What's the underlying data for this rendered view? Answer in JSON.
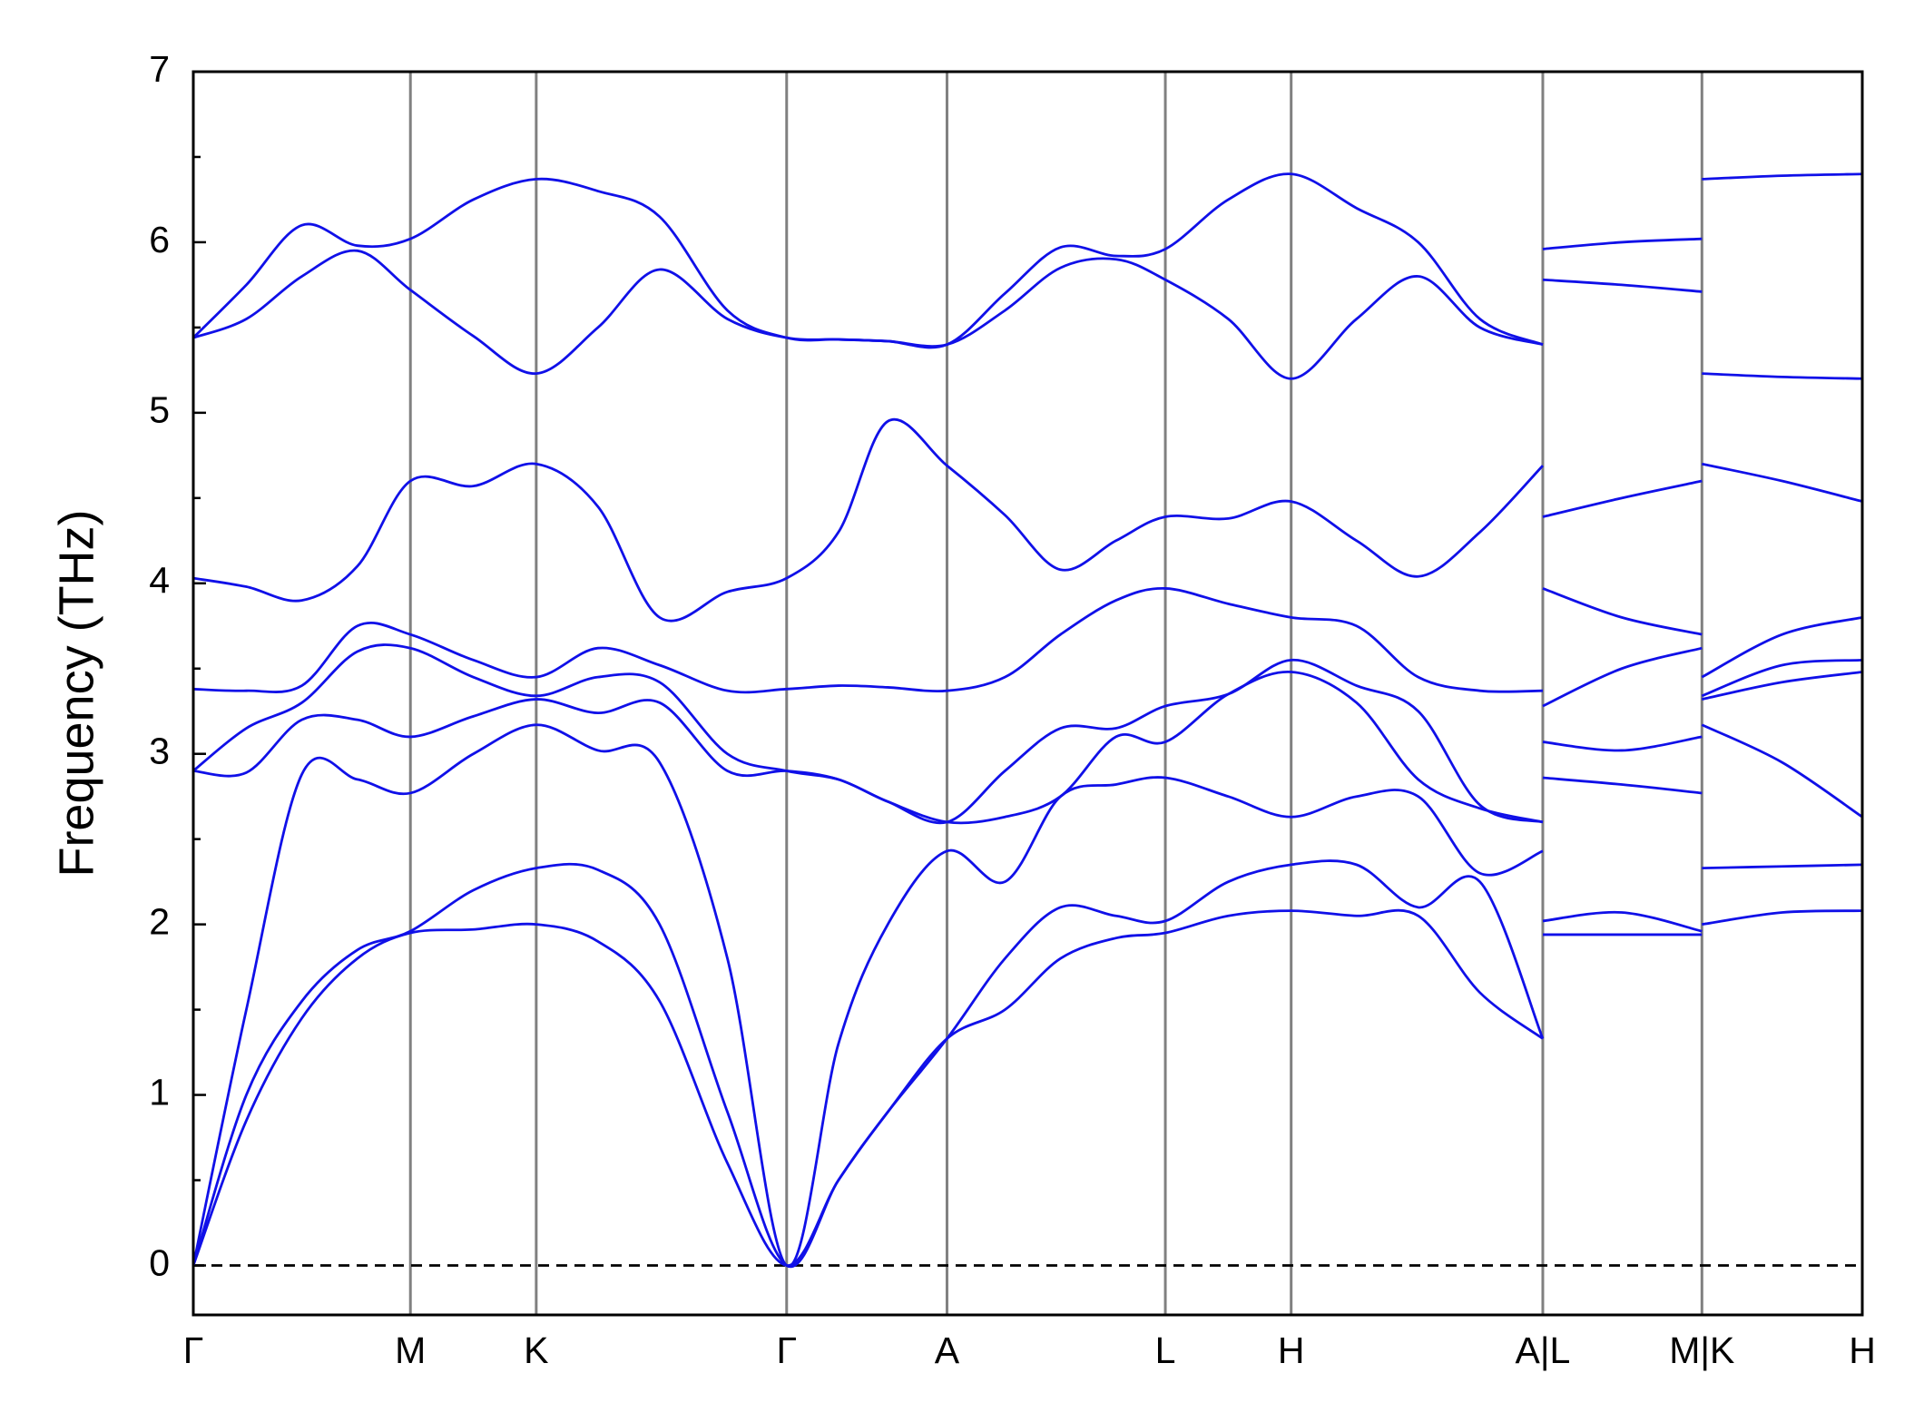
{
  "chart_data": {
    "type": "line",
    "y_label": "Frequency (THz)",
    "x": [
      0,
      0.43,
      0.88,
      1.33,
      1.76,
      2.27,
      2.78,
      3.28,
      3.78,
      4.33,
      4.81,
      5.23,
      5.63,
      6.11,
      6.58,
      7.03,
      7.48,
      7.88,
      8.39,
      8.9,
      9.43,
      9.93,
      10.43,
      10.94,
      null,
      10.94,
      11.58,
      12.23,
      null,
      12.23,
      12.88,
      13.53
    ],
    "xlim": [
      0,
      13.53
    ],
    "xticks": [
      {
        "value": 0,
        "label": "Γ"
      },
      {
        "value": 1.76,
        "label": "M"
      },
      {
        "value": 2.78,
        "label": "K"
      },
      {
        "value": 4.81,
        "label": "Γ"
      },
      {
        "value": 6.11,
        "label": "A"
      },
      {
        "value": 7.88,
        "label": "L"
      },
      {
        "value": 8.9,
        "label": "H"
      },
      {
        "value": 10.94,
        "label": "A|L"
      },
      {
        "value": 12.23,
        "label": "M|K"
      },
      {
        "value": 13.53,
        "label": "H"
      }
    ],
    "ylim": [
      -0.29,
      7
    ],
    "yticks": [
      0,
      1,
      2,
      3,
      4,
      5,
      6,
      7
    ],
    "yminorticks": [
      0.5,
      1.5,
      2.5,
      3.5,
      4.5,
      5.5,
      6.5
    ],
    "reference_line": 0,
    "grid": true,
    "series": [
      {
        "color": "#1010e8",
        "values": [
          0,
          0.85,
          1.45,
          1.8,
          1.95,
          1.97,
          2.0,
          1.9,
          1.55,
          0.6,
          0,
          0.5,
          0.9,
          1.33,
          1.5,
          1.8,
          1.92,
          1.95,
          2.05,
          2.08,
          2.05,
          2.05,
          1.6,
          1.33,
          null,
          1.94,
          1.94,
          1.94,
          null,
          2.0,
          2.07,
          2.08
        ]
      },
      {
        "color": "#1010e8",
        "values": [
          0,
          1.0,
          1.55,
          1.85,
          1.96,
          2.2,
          2.33,
          2.32,
          2.0,
          0.9,
          0,
          0.5,
          0.9,
          1.33,
          1.8,
          2.1,
          2.05,
          2.02,
          2.25,
          2.35,
          2.35,
          2.1,
          2.25,
          1.33,
          null,
          2.02,
          2.07,
          1.96,
          null,
          2.33,
          2.34,
          2.35
        ]
      },
      {
        "color": "#1010e8",
        "values": [
          0,
          1.5,
          2.88,
          2.85,
          2.77,
          3.0,
          3.17,
          3.02,
          2.95,
          1.8,
          0,
          1.3,
          2.0,
          2.43,
          2.25,
          2.75,
          2.82,
          2.86,
          2.75,
          2.63,
          2.75,
          2.75,
          2.3,
          2.43,
          null,
          2.86,
          2.82,
          2.77,
          null,
          3.17,
          2.95,
          2.63
        ]
      },
      {
        "color": "#1010e8",
        "values": [
          2.9,
          2.89,
          3.2,
          3.2,
          3.1,
          3.22,
          3.32,
          3.24,
          3.3,
          2.9,
          2.9,
          2.85,
          2.72,
          2.6,
          2.63,
          2.75,
          3.1,
          3.07,
          3.35,
          3.48,
          3.3,
          2.85,
          2.68,
          2.6,
          null,
          3.07,
          3.02,
          3.1,
          null,
          3.32,
          3.42,
          3.48
        ]
      },
      {
        "color": "#1010e8",
        "values": [
          2.9,
          3.15,
          3.3,
          3.6,
          3.62,
          3.45,
          3.34,
          3.45,
          3.42,
          3.0,
          2.9,
          2.85,
          2.72,
          2.6,
          2.9,
          3.15,
          3.15,
          3.28,
          3.35,
          3.55,
          3.4,
          3.25,
          2.7,
          2.6,
          null,
          3.28,
          3.5,
          3.62,
          null,
          3.34,
          3.52,
          3.55
        ]
      },
      {
        "color": "#1010e8",
        "values": [
          3.38,
          3.37,
          3.4,
          3.75,
          3.7,
          3.55,
          3.45,
          3.62,
          3.52,
          3.37,
          3.38,
          3.4,
          3.39,
          3.37,
          3.45,
          3.7,
          3.9,
          3.97,
          3.88,
          3.8,
          3.75,
          3.45,
          3.37,
          3.37,
          null,
          3.97,
          3.8,
          3.7,
          null,
          3.45,
          3.7,
          3.8
        ]
      },
      {
        "color": "#1010e8",
        "values": [
          4.03,
          3.98,
          3.9,
          4.1,
          4.6,
          4.57,
          4.7,
          4.45,
          3.8,
          3.95,
          4.03,
          4.3,
          4.95,
          4.69,
          4.4,
          4.08,
          4.25,
          4.39,
          4.38,
          4.48,
          4.25,
          4.04,
          4.3,
          4.69,
          null,
          4.39,
          4.5,
          4.6,
          null,
          4.7,
          4.6,
          4.48
        ]
      },
      {
        "color": "#1010e8",
        "values": [
          5.44,
          5.55,
          5.8,
          5.95,
          5.72,
          5.45,
          5.23,
          5.5,
          5.84,
          5.55,
          5.44,
          5.43,
          5.42,
          5.4,
          5.6,
          5.85,
          5.9,
          5.78,
          5.55,
          5.2,
          5.55,
          5.8,
          5.5,
          5.4,
          null,
          5.78,
          5.75,
          5.71,
          null,
          5.23,
          5.21,
          5.2
        ]
      },
      {
        "color": "#1010e8",
        "values": [
          5.44,
          5.75,
          6.1,
          5.98,
          6.02,
          6.25,
          6.37,
          6.3,
          6.15,
          5.6,
          5.44,
          5.43,
          5.42,
          5.4,
          5.7,
          5.97,
          5.92,
          5.96,
          6.25,
          6.4,
          6.2,
          6.0,
          5.55,
          5.4,
          null,
          5.96,
          6.0,
          6.02,
          null,
          6.37,
          6.39,
          6.4
        ]
      }
    ]
  }
}
